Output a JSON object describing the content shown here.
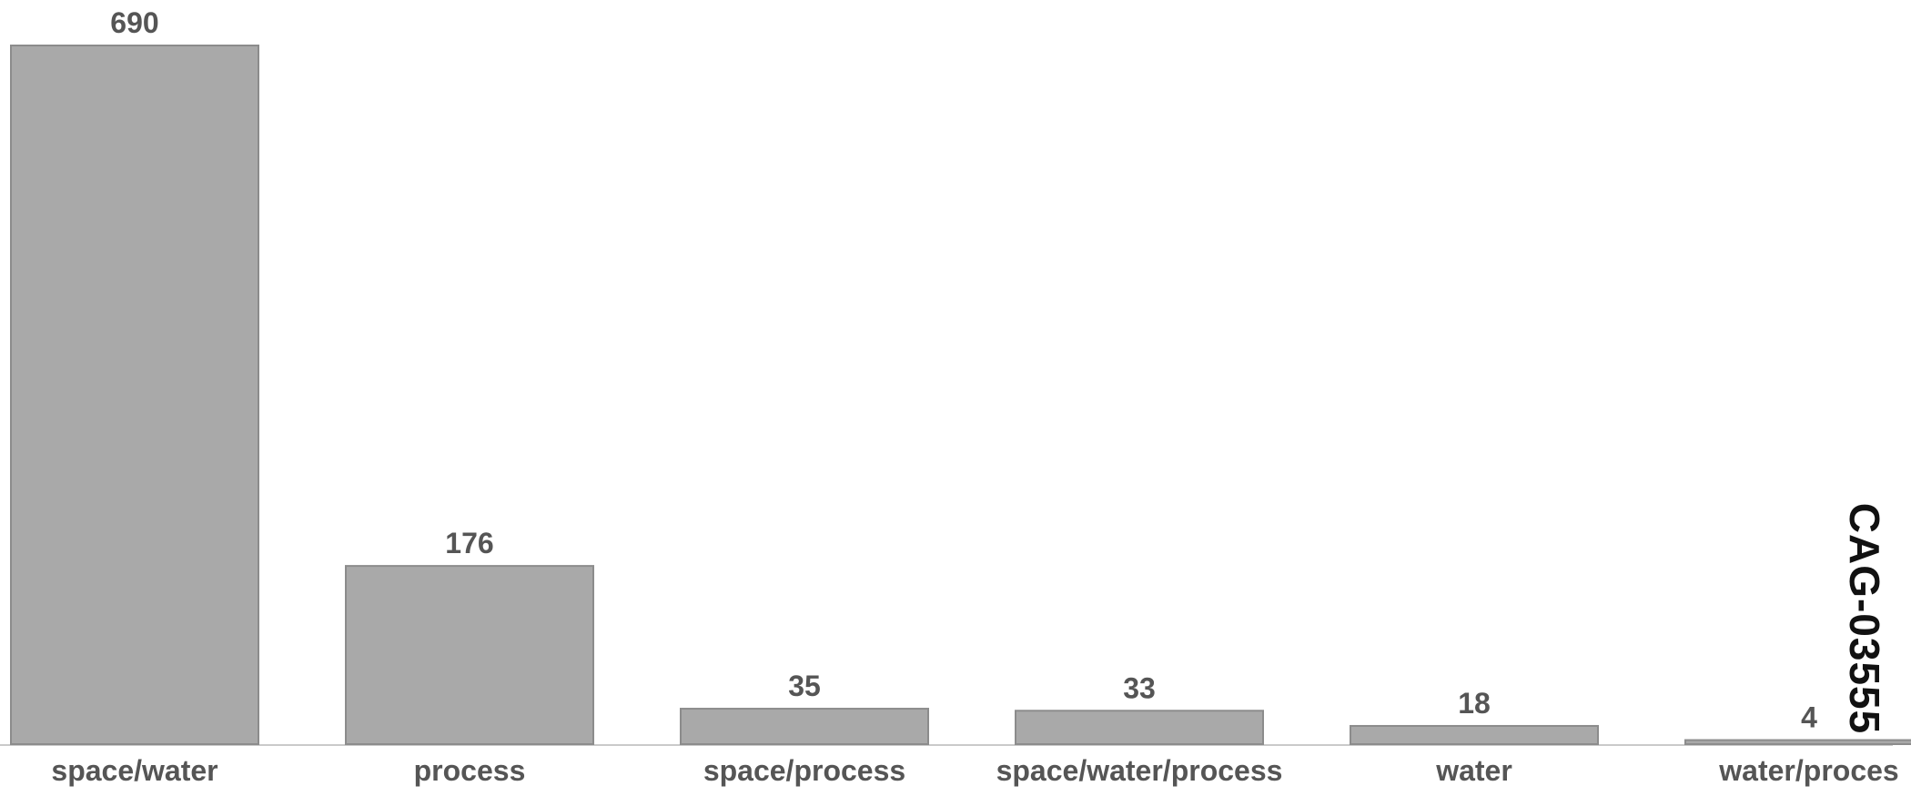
{
  "chart_data": {
    "type": "bar",
    "categories": [
      "space/water",
      "process",
      "space/process",
      "space/water/process",
      "water",
      "water/proces"
    ],
    "values": [
      690,
      176,
      35,
      33,
      18,
      4
    ],
    "value_labels": [
      "690",
      "176",
      "35",
      "33",
      "18",
      "4"
    ],
    "title": "",
    "xlabel": "",
    "ylabel": "",
    "ylim": [
      0,
      690
    ],
    "grid": false,
    "legend": "none"
  },
  "stamp": {
    "text": "CAG-03555"
  },
  "colors": {
    "bar_fill": "#a9a9a9",
    "bar_stroke": "#8c8c8c",
    "label_text": "#555555",
    "baseline": "#b8b8b8"
  }
}
